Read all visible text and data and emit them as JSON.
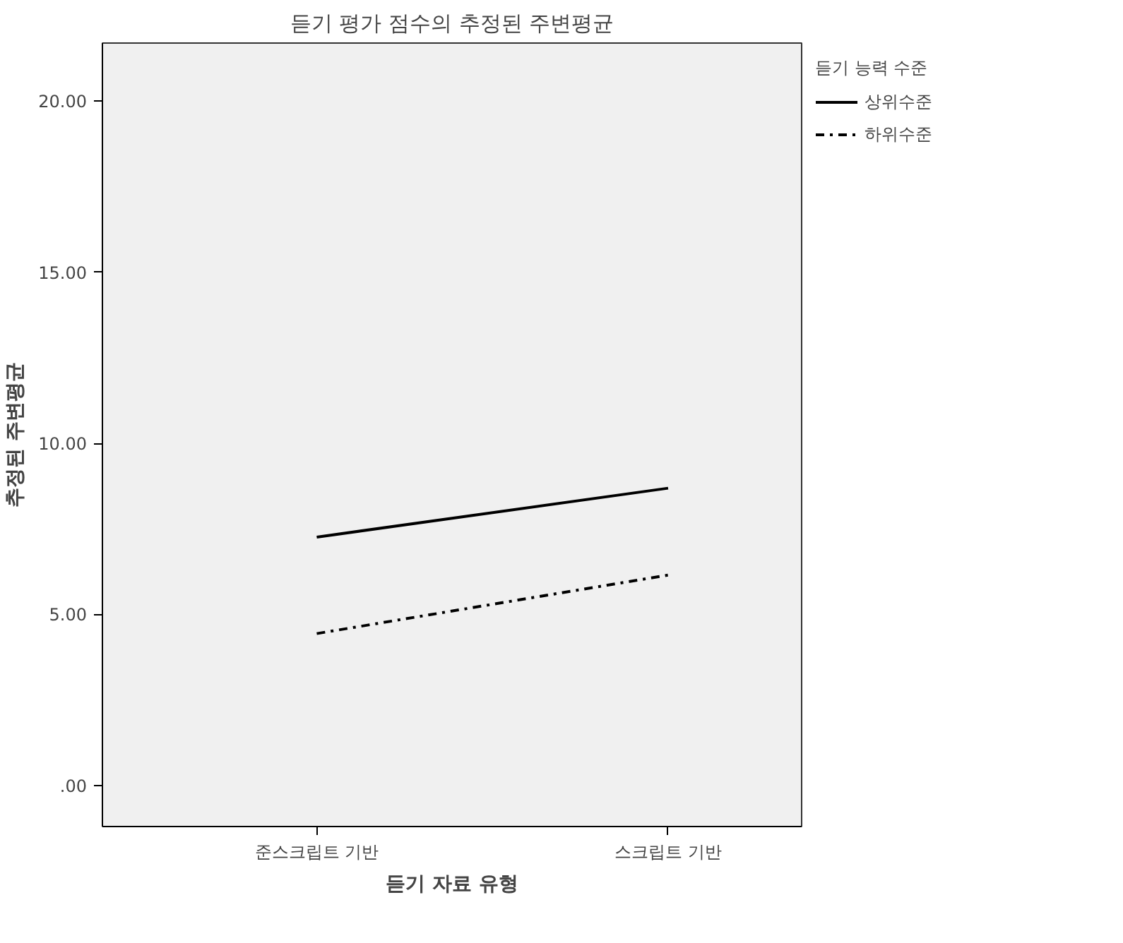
{
  "chart_data": {
    "type": "line",
    "title": "듣기 평가 점수의 추정된 주변평균",
    "xlabel": "듣기 자료 유형",
    "ylabel": "추정된 주변평균",
    "legend_title": "듣기 능력 수준",
    "categories": [
      "준스크립트 기반",
      "스크립트 기반"
    ],
    "series": [
      {
        "name": "상위수준",
        "color": "#000000",
        "line_style": "solid",
        "values": [
          7.26,
          8.69
        ]
      },
      {
        "name": "하위수준",
        "color": "#000000",
        "line_style": "dashed",
        "values": [
          4.44,
          6.15
        ]
      }
    ],
    "ylim": [
      -1.2,
      21.7
    ],
    "yticks": [
      {
        "value": 0,
        "label": ".00"
      },
      {
        "value": 5,
        "label": "5.00"
      },
      {
        "value": 10,
        "label": "10.00"
      },
      {
        "value": 15,
        "label": "15.00"
      },
      {
        "value": 20,
        "label": "20.00"
      }
    ],
    "grid": false,
    "legend": "top right",
    "marker": "none"
  }
}
